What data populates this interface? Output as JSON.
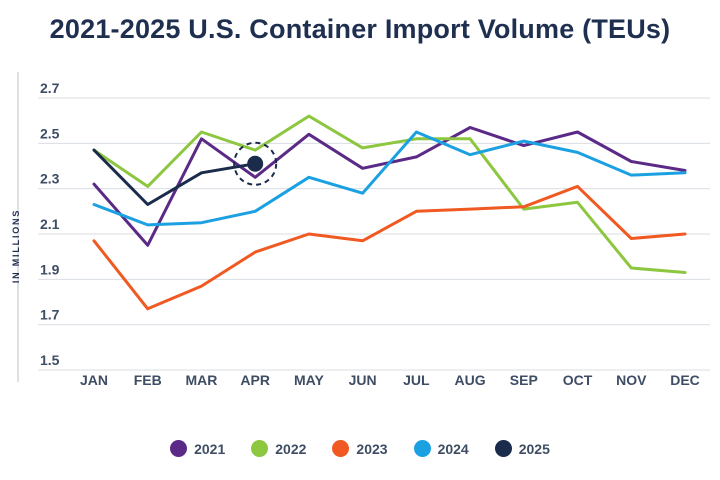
{
  "chart_data": {
    "type": "line",
    "title": "2021-2025 U.S. Container Import Volume (TEUs)",
    "xlabel": "",
    "ylabel": "IN MILLIONS",
    "ylim": [
      1.5,
      2.7
    ],
    "yticks": [
      "2.7",
      "2.5",
      "2.3",
      "2.1",
      "1.9",
      "1.7",
      "1.5"
    ],
    "ytick_values": [
      2.7,
      2.5,
      2.3,
      2.1,
      1.9,
      1.7,
      1.5
    ],
    "categories": [
      "JAN",
      "FEB",
      "MAR",
      "APR",
      "MAY",
      "JUN",
      "JUL",
      "AUG",
      "SEP",
      "OCT",
      "NOV",
      "DEC"
    ],
    "grid": "horizontal",
    "legend_position": "bottom",
    "highlight": {
      "series": "2025",
      "category": "APR"
    },
    "series": [
      {
        "name": "2021",
        "color": "#5b2a86",
        "values": [
          2.32,
          2.05,
          2.52,
          2.35,
          2.54,
          2.39,
          2.44,
          2.57,
          2.49,
          2.55,
          2.42,
          2.38
        ]
      },
      {
        "name": "2022",
        "color": "#8dc63f",
        "values": [
          2.47,
          2.31,
          2.55,
          2.47,
          2.62,
          2.48,
          2.52,
          2.52,
          2.21,
          2.24,
          1.95,
          1.93
        ]
      },
      {
        "name": "2023",
        "color": "#f05a22",
        "values": [
          2.07,
          1.77,
          1.87,
          2.02,
          2.1,
          2.07,
          2.2,
          2.21,
          2.22,
          2.31,
          2.08,
          2.1
        ]
      },
      {
        "name": "2024",
        "color": "#1ba1e2",
        "values": [
          2.23,
          2.14,
          2.15,
          2.2,
          2.35,
          2.28,
          2.55,
          2.45,
          2.51,
          2.46,
          2.36,
          2.37
        ]
      },
      {
        "name": "2025",
        "color": "#1a2b4c",
        "values": [
          2.47,
          2.23,
          2.37,
          2.41,
          null,
          null,
          null,
          null,
          null,
          null,
          null,
          null
        ]
      }
    ]
  }
}
